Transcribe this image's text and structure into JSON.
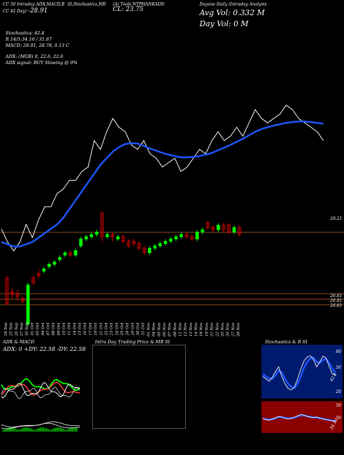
{
  "header": {
    "left_l1": "CC 50 Intraday ADX,MACD,B",
    "left_l2": "CC 42 Day) ",
    "left_big": "-28.91",
    "mid_l1": "SI,Stochastics,MR",
    "right_l1": "(A) Tools NTPHANKADD",
    "right_big": "CL: 23.75",
    "far_l1": "Dayone Daily (Intraday Analysis",
    "far_big1": "Avg Vol: 0.332  M",
    "far_big2": "Day Vol: 0   M"
  },
  "info": {
    "stoch": "Stochastics: 42.4",
    "r": "R                    14/5:34.16 / 31.87",
    "macd": "MACD: 28.91, 28.78, 0.13 C",
    "adx": "ADX:                        (MGB) 0, 22.6,  22.6",
    "adx_signal": "ADX signal:                               BUY Slowing @ 0%"
  },
  "price_levels": [
    "29.21",
    "26.81",
    "26.81",
    "26.81"
  ],
  "panels": {
    "adx_title": "ADX  & MACD",
    "adx_values": "ADX: 0   +DY: 22.58  -DY: 22.58",
    "intraday_title": "Intra  Day Trading Price  & MR                              SI",
    "stoch_title": "Stochastics  & R                     SI",
    "stoch_levels": [
      "80",
      "50",
      "20"
    ],
    "stoch_value": "42.4",
    "rsi_levels": [
      "50",
      "50"
    ],
    "rsi_value": "34.16"
  },
  "colors": {
    "up": "#00ff00",
    "down": "#ff0000",
    "ma": "#1e56ff",
    "price_line": "#ffffff",
    "level_line": "#c8641e",
    "rsi_bg": "#8b0000",
    "stoch_bg": "#001a6e"
  },
  "chart_data": {
    "type": "line",
    "x": [
      "24 Sep",
      "25 Sep",
      "26 Sep",
      "27 Sep",
      "30 Sep",
      "01 Oct",
      "03 Oct",
      "04 Oct",
      "07 Oct",
      "08 Oct",
      "09 Oct",
      "10 Oct",
      "11 Oct",
      "14 Oct",
      "15 Oct",
      "16 Oct",
      "17 Oct",
      "18 Oct",
      "21 Oct",
      "22 Oct",
      "23 Oct",
      "24 Oct",
      "25 Oct",
      "28 Oct",
      "29 Oct",
      "30 Oct",
      "31 Oct",
      "01 Nov",
      "04 Nov",
      "05 Nov",
      "06 Nov",
      "07 Nov",
      "08 Nov",
      "11 Nov",
      "12 Nov",
      "13 Nov",
      "14 Nov",
      "18 Nov",
      "19 Nov",
      "21 Nov",
      "22 Nov",
      "25 Nov",
      "26 Nov",
      "27 Nov",
      "28 Nov",
      "29 Nov",
      "02 Dec",
      "03 Dec",
      "04 Dec",
      "05 Dec",
      "06 Dec",
      "09 Dec",
      "10 Dec"
    ],
    "series": [
      {
        "values": [
          27.5,
          27.2,
          27.0,
          27.2,
          27.6,
          27.3,
          27.7,
          28.0,
          28.0,
          28.3,
          28.4,
          28.6,
          28.6,
          28.8,
          28.9,
          29.5,
          29.3,
          29.7,
          30.0,
          29.8,
          29.7,
          29.4,
          29.3,
          29.5,
          29.2,
          29.1,
          28.9,
          29.0,
          29.1,
          28.8,
          28.9,
          29.1,
          29.3,
          29.2,
          29.5,
          29.7,
          29.5,
          29.6,
          29.8,
          29.6,
          29.9,
          30.2,
          30.0,
          29.9,
          30.0,
          30.1,
          30.3,
          30.2,
          30.0,
          29.9,
          29.8,
          29.7,
          29.5
        ]
      },
      {
        "values": [
          27.2,
          27.15,
          27.1,
          27.1,
          27.15,
          27.2,
          27.3,
          27.4,
          27.5,
          27.6,
          27.75,
          27.95,
          28.15,
          28.35,
          28.55,
          28.75,
          28.95,
          29.1,
          29.25,
          29.35,
          29.42,
          29.44,
          29.43,
          29.38,
          29.32,
          29.27,
          29.22,
          29.18,
          29.15,
          29.12,
          29.12,
          29.13,
          29.15,
          29.18,
          29.22,
          29.28,
          29.34,
          29.4,
          29.47,
          29.54,
          29.62,
          29.7,
          29.76,
          29.8,
          29.84,
          29.87,
          29.9,
          29.92,
          29.93,
          29.93,
          29.92,
          29.9,
          29.88
        ]
      }
    ],
    "candles": [
      [
        0,
        27.2,
        26.1,
        27.3,
        26.0
      ],
      [
        1,
        26.6,
        26.5,
        26.8,
        26.3
      ],
      [
        2,
        26.5,
        26.4,
        26.7,
        26.2
      ],
      [
        3,
        26.3,
        26.2,
        26.4,
        26.1
      ],
      [
        4,
        25.2,
        26.9,
        27.0,
        25.1
      ],
      [
        5,
        27.2,
        27.0,
        27.3,
        26.9
      ],
      [
        6,
        27.4,
        27.3,
        27.6,
        27.2
      ],
      [
        7,
        27.5,
        27.6,
        27.7,
        27.4
      ],
      [
        8,
        27.7,
        27.8,
        27.9,
        27.6
      ],
      [
        9,
        27.8,
        27.9,
        28.0,
        27.7
      ],
      [
        10,
        28.0,
        28.1,
        28.2,
        27.9
      ],
      [
        11,
        28.2,
        28.3,
        28.4,
        28.1
      ],
      [
        12,
        28.3,
        28.2,
        28.4,
        28.1
      ],
      [
        13,
        28.2,
        28.4,
        28.5,
        28.1
      ],
      [
        14,
        28.6,
        28.9,
        29.0,
        28.5
      ],
      [
        15,
        28.9,
        29.0,
        29.1,
        28.8
      ],
      [
        16,
        29.0,
        29.1,
        29.2,
        28.9
      ],
      [
        17,
        29.1,
        29.2,
        29.3,
        29.0
      ],
      [
        18,
        30.0,
        29.0,
        30.1,
        28.8
      ],
      [
        19,
        29.0,
        29.1,
        29.2,
        28.9
      ],
      [
        20,
        29.1,
        29.0,
        29.2,
        28.8
      ],
      [
        21,
        28.9,
        29.0,
        29.1,
        28.8
      ],
      [
        22,
        29.0,
        28.8,
        29.1,
        28.7
      ],
      [
        23,
        28.8,
        28.6,
        28.9,
        28.5
      ],
      [
        24,
        28.8,
        28.7,
        28.9,
        28.6
      ],
      [
        25,
        28.7,
        28.5,
        28.8,
        28.4
      ],
      [
        26,
        28.5,
        28.3,
        28.6,
        28.2
      ],
      [
        27,
        28.3,
        28.5,
        28.6,
        28.2
      ],
      [
        28,
        28.5,
        28.6,
        28.7,
        28.4
      ],
      [
        29,
        28.6,
        28.7,
        28.8,
        28.5
      ],
      [
        30,
        28.7,
        28.8,
        28.9,
        28.6
      ],
      [
        31,
        28.8,
        28.9,
        29.0,
        28.7
      ],
      [
        32,
        28.9,
        29.0,
        29.1,
        28.8
      ],
      [
        33,
        29.0,
        29.1,
        29.2,
        28.9
      ],
      [
        34,
        29.1,
        29.0,
        29.2,
        28.9
      ],
      [
        35,
        29.0,
        28.9,
        29.1,
        28.8
      ],
      [
        36,
        28.9,
        29.2,
        29.3,
        28.8
      ],
      [
        37,
        29.2,
        29.3,
        29.4,
        29.1
      ],
      [
        38,
        29.6,
        29.4,
        29.7,
        29.3
      ],
      [
        39,
        29.4,
        29.3,
        29.5,
        29.2
      ],
      [
        40,
        29.3,
        29.5,
        29.6,
        29.2
      ],
      [
        41,
        29.5,
        29.3,
        29.6,
        29.2
      ],
      [
        42,
        29.5,
        29.2,
        29.6,
        29.1
      ],
      [
        43,
        29.2,
        29.4,
        29.5,
        29.1
      ],
      [
        44,
        29.4,
        29.1,
        29.5,
        29.0
      ]
    ],
    "ylim": [
      25.5,
      31.2
    ]
  }
}
